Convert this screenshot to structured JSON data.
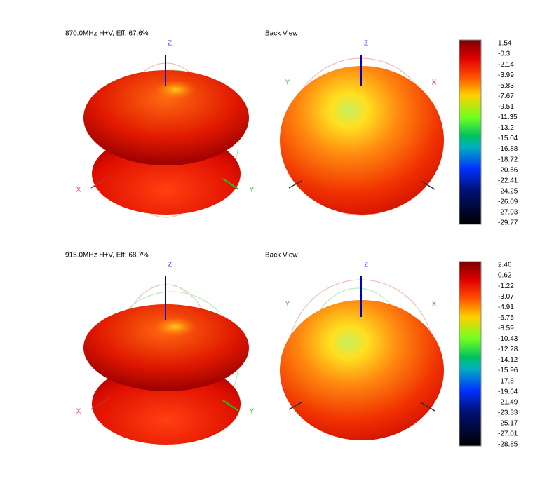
{
  "panels": [
    {
      "title": "870.0MHz H+V, Eff: 67.6%",
      "back_title": "Back View",
      "axes": {
        "x": "X",
        "y": "Y",
        "z": "Z"
      },
      "colorbar": [
        "1.54",
        "-0.3",
        "-2.14",
        "-3.99",
        "-5.83",
        "-7.67",
        "-9.51",
        "-11.35",
        "-13.2",
        "-15.04",
        "-16.88",
        "-18.72",
        "-20.56",
        "-22.41",
        "-24.25",
        "-26.09",
        "-27.93",
        "-29.77"
      ]
    },
    {
      "title": "915.0MHz H+V, Eff: 68.7%",
      "back_title": "Back View",
      "axes": {
        "x": "X",
        "y": "Y",
        "z": "Z"
      },
      "colorbar": [
        "2.46",
        "0.62",
        "-1.22",
        "-3.07",
        "-4.91",
        "-6.75",
        "-8.59",
        "-10.43",
        "-12.28",
        "-14.12",
        "-15.96",
        "-17.8",
        "-19.64",
        "-21.49",
        "-23.33",
        "-25.17",
        "-27.01",
        "-28.85"
      ]
    }
  ]
}
